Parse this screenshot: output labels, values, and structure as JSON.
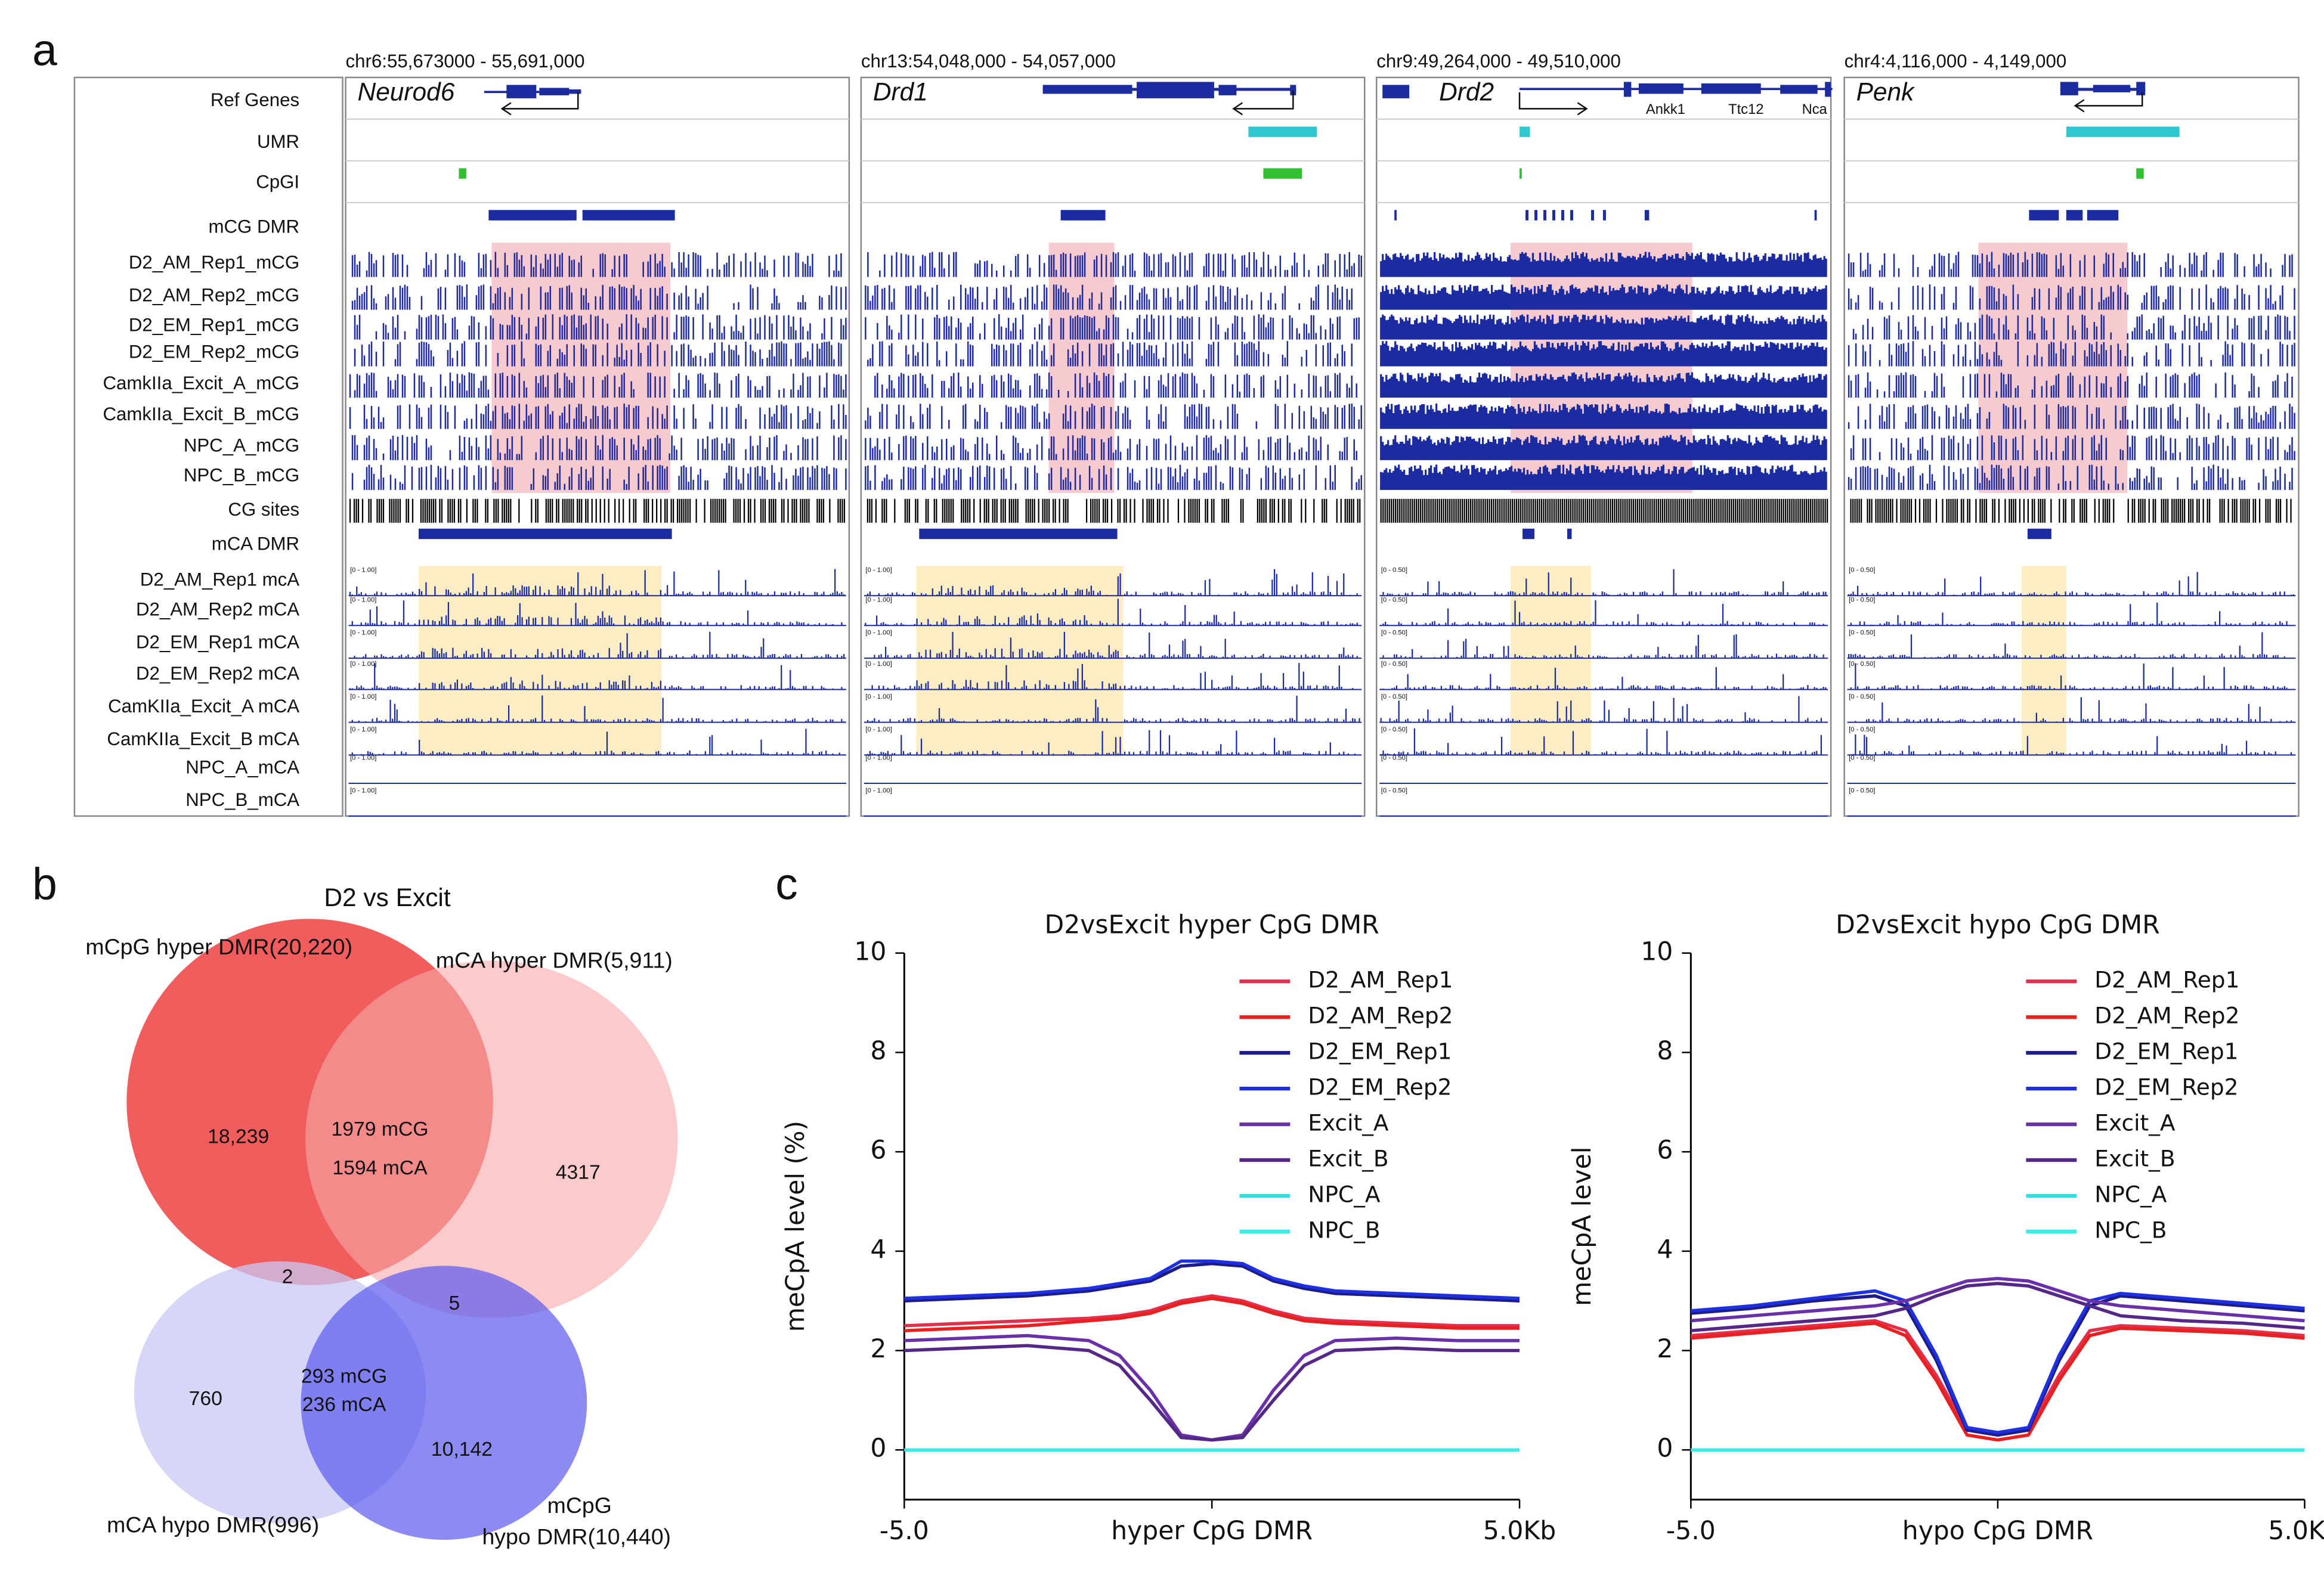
{
  "panel_labels": [
    "a",
    "b",
    "c"
  ],
  "panel_a": {
    "track_labels": [
      "Ref Genes",
      "UMR",
      "CpGI",
      "mCG DMR",
      "D2_AM_Rep1_mCG",
      "D2_AM_Rep2_mCG",
      "D2_EM_Rep1_mCG",
      "D2_EM_Rep2_mCG",
      "CamkIIa_Excit_A_mCG",
      "CamkIIa_Excit_B_mCG",
      "NPC_A_mCG",
      "NPC_B_mCG",
      "CG sites",
      "mCA DMR",
      "D2_AM_Rep1 mcA",
      "D2_AM_Rep2 mCA",
      "D2_EM_Rep1 mCA",
      "D2_EM_Rep2 mCA",
      "CamKIIa_Excit_A mCA",
      "CamKIIa_Excit_B mCA",
      "NPC_A_mCA",
      "NPC_B_mCA"
    ],
    "regions": [
      {
        "coords": "chr6:55,673000 - 55,691,000",
        "gene": "Neurod6",
        "scale": "[0 - 1.00]"
      },
      {
        "coords": "chr13:54,048,000 - 54,057,000",
        "gene": "Drd1",
        "scale": "[0 - 1.00]"
      },
      {
        "coords": "chr9:49,264,000 - 49,510,000",
        "gene": "Drd2",
        "scale": "[0 - 0.50]"
      },
      {
        "coords": "chr4:4,116,000 - 4,149,000",
        "gene": "Penk",
        "scale": "[0 - 0.50]"
      }
    ],
    "extra_genes": [
      "Ankk1",
      "Ttc12",
      "Nca"
    ]
  },
  "panel_b": {
    "title": "D2 vs Excit",
    "set_labels": [
      "mCpG hyper DMR(20,220)",
      "mCA hyper DMR(5,911)",
      "mCA hypo DMR(996)",
      "mCpG",
      "hypo DMR(10,440)"
    ],
    "counts": [
      "18,239",
      "1979 mCG",
      "1594 mCA",
      "4317",
      "2",
      "5",
      "760",
      "293 mCG",
      "236 mCA",
      "10,142"
    ]
  },
  "chart_data": [
    {
      "type": "line",
      "title": "D2vsExcit hyper CpG DMR",
      "ylabel": "meCpA level (%)",
      "x": [
        -5,
        -4,
        -3,
        -2,
        -1.5,
        -1,
        -0.5,
        0,
        0.5,
        1,
        1.5,
        2,
        3,
        4,
        5
      ],
      "xlim": [
        -5,
        5
      ],
      "xticks": [
        {
          "value": -5,
          "label": "-5.0"
        },
        {
          "value": 0,
          "label": "hyper CpG DMR"
        },
        {
          "value": 5,
          "label": "5.0Kb"
        }
      ],
      "ylim": [
        -1,
        10
      ],
      "yticks": [
        0,
        2,
        4,
        6,
        8,
        10
      ],
      "series": [
        {
          "name": "D2_AM_Rep1",
          "color": "#e0304c",
          "values": [
            2.5,
            2.55,
            2.6,
            2.65,
            2.7,
            2.8,
            3.0,
            3.1,
            3.0,
            2.8,
            2.65,
            2.6,
            2.55,
            2.5,
            2.5
          ]
        },
        {
          "name": "D2_AM_Rep2",
          "color": "#e82020",
          "values": [
            2.4,
            2.45,
            2.5,
            2.6,
            2.65,
            2.75,
            2.95,
            3.05,
            2.95,
            2.75,
            2.6,
            2.55,
            2.5,
            2.45,
            2.45
          ]
        },
        {
          "name": "D2_EM_Rep1",
          "color": "#1c1c8c",
          "values": [
            3.0,
            3.05,
            3.1,
            3.2,
            3.3,
            3.4,
            3.7,
            3.75,
            3.7,
            3.4,
            3.25,
            3.15,
            3.1,
            3.05,
            3.0
          ]
        },
        {
          "name": "D2_EM_Rep2",
          "color": "#1f30e0",
          "values": [
            3.05,
            3.1,
            3.15,
            3.25,
            3.35,
            3.45,
            3.8,
            3.8,
            3.75,
            3.45,
            3.3,
            3.2,
            3.15,
            3.1,
            3.05
          ]
        },
        {
          "name": "Excit_A",
          "color": "#6a30a8",
          "values": [
            2.2,
            2.25,
            2.3,
            2.2,
            1.9,
            1.2,
            0.3,
            0.2,
            0.3,
            1.2,
            1.9,
            2.2,
            2.25,
            2.2,
            2.2
          ]
        },
        {
          "name": "Excit_B",
          "color": "#552888",
          "values": [
            2.0,
            2.05,
            2.1,
            2.0,
            1.7,
            1.0,
            0.25,
            0.2,
            0.25,
            1.0,
            1.7,
            2.0,
            2.05,
            2.0,
            2.0
          ]
        },
        {
          "name": "NPC_A",
          "color": "#30e0e0",
          "values": [
            0,
            0,
            0,
            0,
            0,
            0,
            0,
            0,
            0,
            0,
            0,
            0,
            0,
            0,
            0
          ]
        },
        {
          "name": "NPC_B",
          "color": "#40e8e8",
          "values": [
            0,
            0,
            0,
            0,
            0,
            0,
            0,
            0,
            0,
            0,
            0,
            0,
            0,
            0,
            0
          ]
        }
      ]
    },
    {
      "type": "line",
      "title": "D2vsExcit hypo CpG DMR",
      "ylabel": "meCpA level",
      "x": [
        -5,
        -4,
        -3,
        -2,
        -1.5,
        -1,
        -0.5,
        0,
        0.5,
        1,
        1.5,
        2,
        3,
        4,
        5
      ],
      "xlim": [
        -5,
        5
      ],
      "xticks": [
        {
          "value": -5,
          "label": "-5.0"
        },
        {
          "value": 0,
          "label": "hypo CpG DMR"
        },
        {
          "value": 5,
          "label": "5.0Kb"
        }
      ],
      "ylim": [
        -1,
        10
      ],
      "yticks": [
        0,
        2,
        4,
        6,
        8,
        10
      ],
      "series": [
        {
          "name": "D2_AM_Rep1",
          "color": "#e0304c",
          "values": [
            2.3,
            2.4,
            2.5,
            2.6,
            2.4,
            1.5,
            0.4,
            0.3,
            0.4,
            1.5,
            2.4,
            2.5,
            2.45,
            2.4,
            2.3
          ]
        },
        {
          "name": "D2_AM_Rep2",
          "color": "#e82020",
          "values": [
            2.25,
            2.35,
            2.45,
            2.55,
            2.3,
            1.4,
            0.3,
            0.2,
            0.3,
            1.4,
            2.3,
            2.45,
            2.4,
            2.35,
            2.25
          ]
        },
        {
          "name": "D2_EM_Rep1",
          "color": "#1c1c8c",
          "values": [
            2.75,
            2.85,
            3.0,
            3.1,
            2.9,
            1.8,
            0.4,
            0.3,
            0.4,
            1.8,
            2.9,
            3.1,
            3.0,
            2.9,
            2.8
          ]
        },
        {
          "name": "D2_EM_Rep2",
          "color": "#1f30e0",
          "values": [
            2.8,
            2.9,
            3.05,
            3.2,
            3.0,
            1.9,
            0.45,
            0.35,
            0.45,
            1.9,
            3.0,
            3.15,
            3.05,
            2.95,
            2.85
          ]
        },
        {
          "name": "Excit_A",
          "color": "#6a30a8",
          "values": [
            2.6,
            2.7,
            2.8,
            2.9,
            3.0,
            3.2,
            3.4,
            3.45,
            3.4,
            3.2,
            3.0,
            2.9,
            2.8,
            2.7,
            2.6
          ]
        },
        {
          "name": "Excit_B",
          "color": "#552888",
          "values": [
            2.4,
            2.5,
            2.6,
            2.7,
            2.85,
            3.1,
            3.3,
            3.35,
            3.3,
            3.1,
            2.9,
            2.7,
            2.6,
            2.55,
            2.45
          ]
        },
        {
          "name": "NPC_A",
          "color": "#30e0e0",
          "values": [
            0,
            0,
            0,
            0,
            0,
            0,
            0,
            0,
            0,
            0,
            0,
            0,
            0,
            0,
            0
          ]
        },
        {
          "name": "NPC_B",
          "color": "#40e8e8",
          "values": [
            0,
            0,
            0,
            0,
            0,
            0,
            0,
            0,
            0,
            0,
            0,
            0,
            0,
            0,
            0
          ]
        }
      ]
    }
  ]
}
